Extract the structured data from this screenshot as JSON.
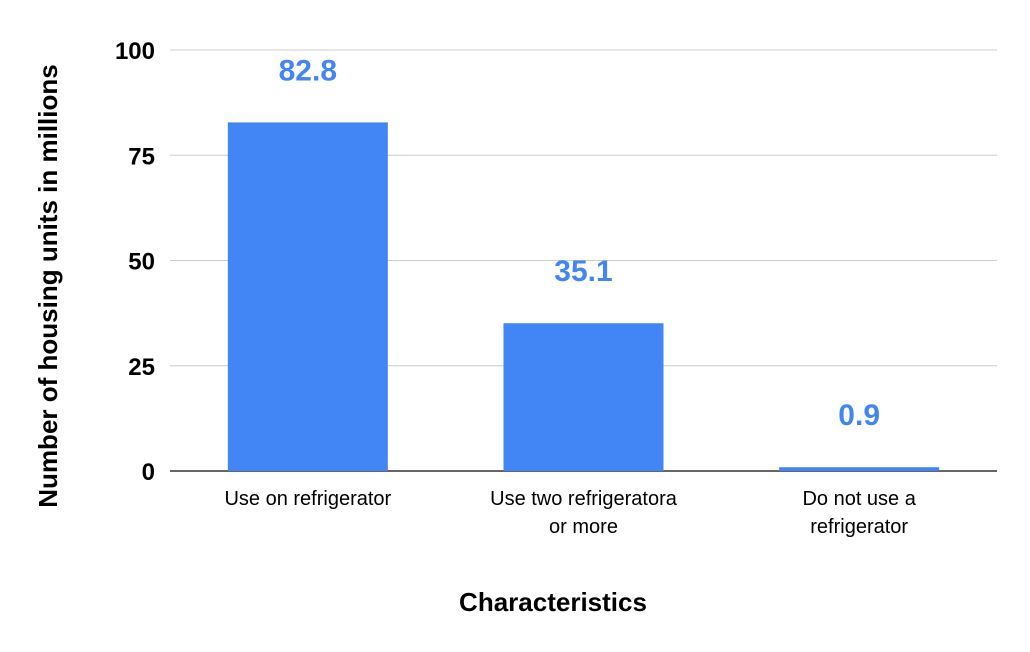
{
  "chart_data": {
    "type": "bar",
    "title": "",
    "xlabel": "Characteristics",
    "ylabel": "Number of housing units in millions",
    "categories": [
      [
        "Use on refrigerator"
      ],
      [
        "Use two refrigeratora",
        "or more"
      ],
      [
        "Do not use a",
        "refrigerator"
      ]
    ],
    "values": [
      82.8,
      35.1,
      0.9
    ],
    "value_labels": [
      "82.8",
      "35.1",
      "0.9"
    ],
    "ylim": [
      0,
      100
    ],
    "yticks": [
      0,
      25,
      50,
      75,
      100
    ],
    "grid": true,
    "legend": "none",
    "colors": {
      "bar": "#4285f4",
      "data_label": "#4285f4",
      "grid": "#cccccc",
      "baseline": "#333333"
    }
  }
}
